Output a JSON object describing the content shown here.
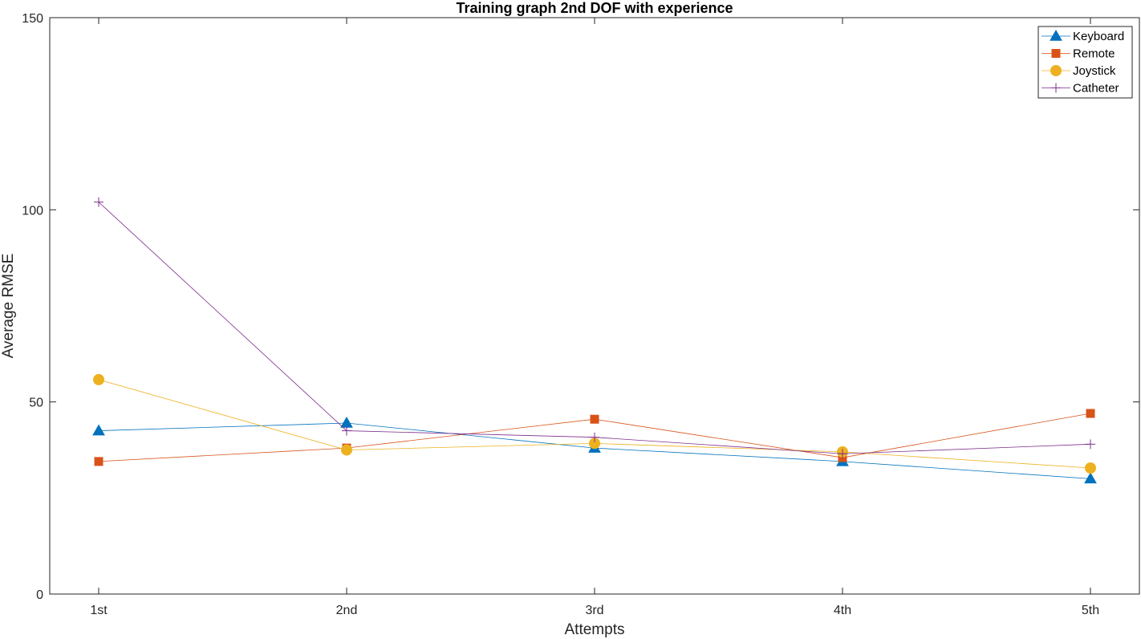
{
  "chart_data": {
    "type": "line",
    "title": "Training graph 2nd DOF with experience",
    "xlabel": "Attempts",
    "ylabel": "Average RMSE",
    "categories": [
      "1st",
      "2nd",
      "3rd",
      "4th",
      "5th"
    ],
    "ylim": [
      0,
      150
    ],
    "yticks": [
      "0",
      "50",
      "100",
      "150"
    ],
    "grid": false,
    "legend_position": "top-right",
    "series": [
      {
        "name": "Keyboard",
        "values": [
          42.5,
          44.5,
          38.0,
          34.5,
          30.0
        ],
        "color": "#0072BD",
        "marker": "triangle"
      },
      {
        "name": "Remote",
        "values": [
          34.5,
          38.0,
          45.5,
          35.5,
          47.0
        ],
        "color": "#D95319",
        "marker": "square"
      },
      {
        "name": "Joystick",
        "values": [
          55.8,
          37.5,
          39.2,
          37.0,
          32.8
        ],
        "color": "#EDB120",
        "marker": "circle"
      },
      {
        "name": "Catheter",
        "values": [
          102.0,
          42.5,
          40.8,
          36.5,
          39.0
        ],
        "color": "#7E2F8E",
        "marker": "plus"
      }
    ]
  }
}
